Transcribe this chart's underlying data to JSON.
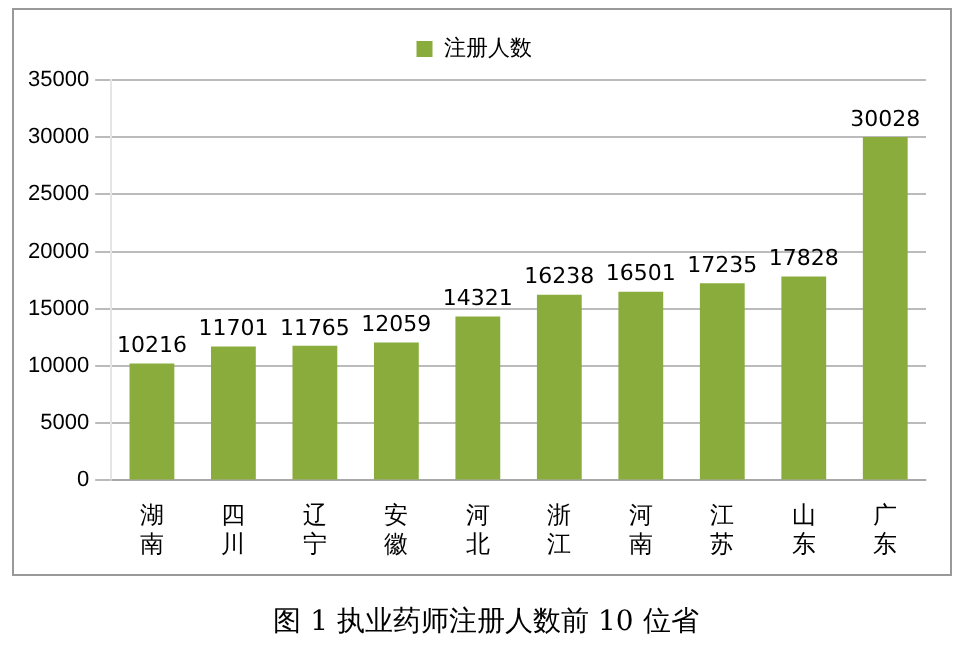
{
  "chart_data": {
    "type": "bar",
    "categories": [
      "湖南",
      "四川",
      "辽宁",
      "安徽",
      "河北",
      "浙江",
      "河南",
      "江苏",
      "山东",
      "广东"
    ],
    "series": [
      {
        "name": "注册人数",
        "color": "#8aac3c",
        "values": [
          10216,
          11701,
          11765,
          12059,
          14321,
          16238,
          16501,
          17235,
          17828,
          30028
        ]
      }
    ],
    "ylim": [
      0,
      35000
    ],
    "yticks": [
      0,
      5000,
      10000,
      15000,
      20000,
      25000,
      30000,
      35000
    ],
    "grid": "y",
    "legend": "top",
    "data_labels": true,
    "annotations": [
      "图 1 执业药师注册人数前 10 位省"
    ]
  }
}
